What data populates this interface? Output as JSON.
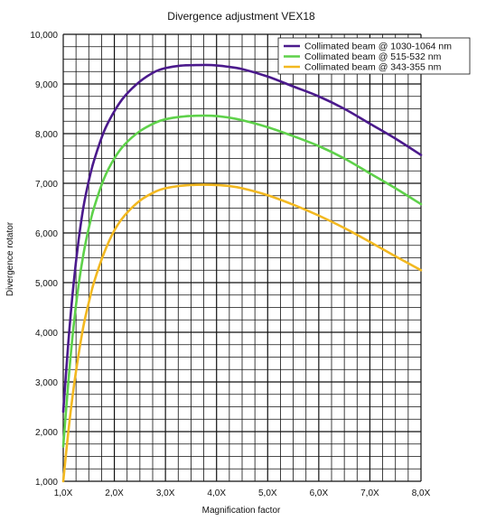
{
  "chart_data": {
    "type": "line",
    "title": "Divergence adjustment VEX18",
    "xlabel": "Magnification factor",
    "ylabel": "Divergence rotator",
    "xlim": [
      1.0,
      8.0
    ],
    "ylim": [
      1000,
      10000
    ],
    "x_ticks": [
      1,
      2,
      3,
      4,
      5,
      6,
      7,
      8
    ],
    "x_tick_labels": [
      "1,0X",
      "2,0X",
      "3,0X",
      "4,0X",
      "5,0X",
      "6,0X",
      "7,0X",
      "8,0X"
    ],
    "y_ticks": [
      1000,
      2000,
      3000,
      4000,
      5000,
      6000,
      7000,
      8000,
      9000,
      10000
    ],
    "y_tick_labels": [
      "1,000",
      "2,000",
      "3,000",
      "4,000",
      "5,000",
      "6,000",
      "7,000",
      "8,000",
      "9,000",
      "10,000"
    ],
    "grid": true,
    "legend": "top-right",
    "series": [
      {
        "name": "Collimated beam @ 1030-1064 nm",
        "color": "#4b1a8c",
        "x": [
          1.0,
          1.1,
          1.2,
          1.3,
          1.4,
          1.5,
          1.6,
          1.8,
          2.0,
          2.2,
          2.5,
          2.8,
          3.0,
          3.3,
          3.6,
          3.9,
          4.2,
          4.5,
          5.0,
          5.5,
          6.0,
          6.5,
          7.0,
          7.5,
          8.0
        ],
        "y": [
          2400,
          3800,
          4950,
          5850,
          6550,
          7050,
          7450,
          8050,
          8450,
          8750,
          9050,
          9250,
          9320,
          9370,
          9380,
          9380,
          9350,
          9300,
          9150,
          8950,
          8750,
          8500,
          8200,
          7900,
          7570
        ]
      },
      {
        "name": "Collimated beam @ 515-532 nm",
        "color": "#5ed14a",
        "x": [
          1.0,
          1.1,
          1.2,
          1.3,
          1.4,
          1.5,
          1.6,
          1.8,
          2.0,
          2.2,
          2.5,
          2.8,
          3.0,
          3.3,
          3.6,
          3.9,
          4.2,
          4.5,
          5.0,
          5.5,
          6.0,
          6.5,
          7.0,
          7.5,
          8.0
        ],
        "y": [
          1700,
          3000,
          4100,
          4950,
          5600,
          6100,
          6500,
          7100,
          7500,
          7780,
          8050,
          8220,
          8290,
          8340,
          8360,
          8360,
          8330,
          8270,
          8130,
          7950,
          7750,
          7500,
          7200,
          6900,
          6580
        ]
      },
      {
        "name": "Collimated beam @ 343-355 nm",
        "color": "#f2b820",
        "x": [
          1.0,
          1.1,
          1.2,
          1.3,
          1.4,
          1.5,
          1.6,
          1.8,
          2.0,
          2.2,
          2.5,
          2.8,
          3.0,
          3.3,
          3.6,
          3.9,
          4.2,
          4.5,
          5.0,
          5.5,
          6.0,
          6.5,
          7.0,
          7.5,
          8.0
        ],
        "y": [
          1000,
          2000,
          2850,
          3550,
          4150,
          4600,
          5000,
          5600,
          6050,
          6350,
          6650,
          6830,
          6900,
          6950,
          6970,
          6970,
          6950,
          6900,
          6760,
          6570,
          6350,
          6100,
          5820,
          5530,
          5250
        ]
      }
    ]
  }
}
